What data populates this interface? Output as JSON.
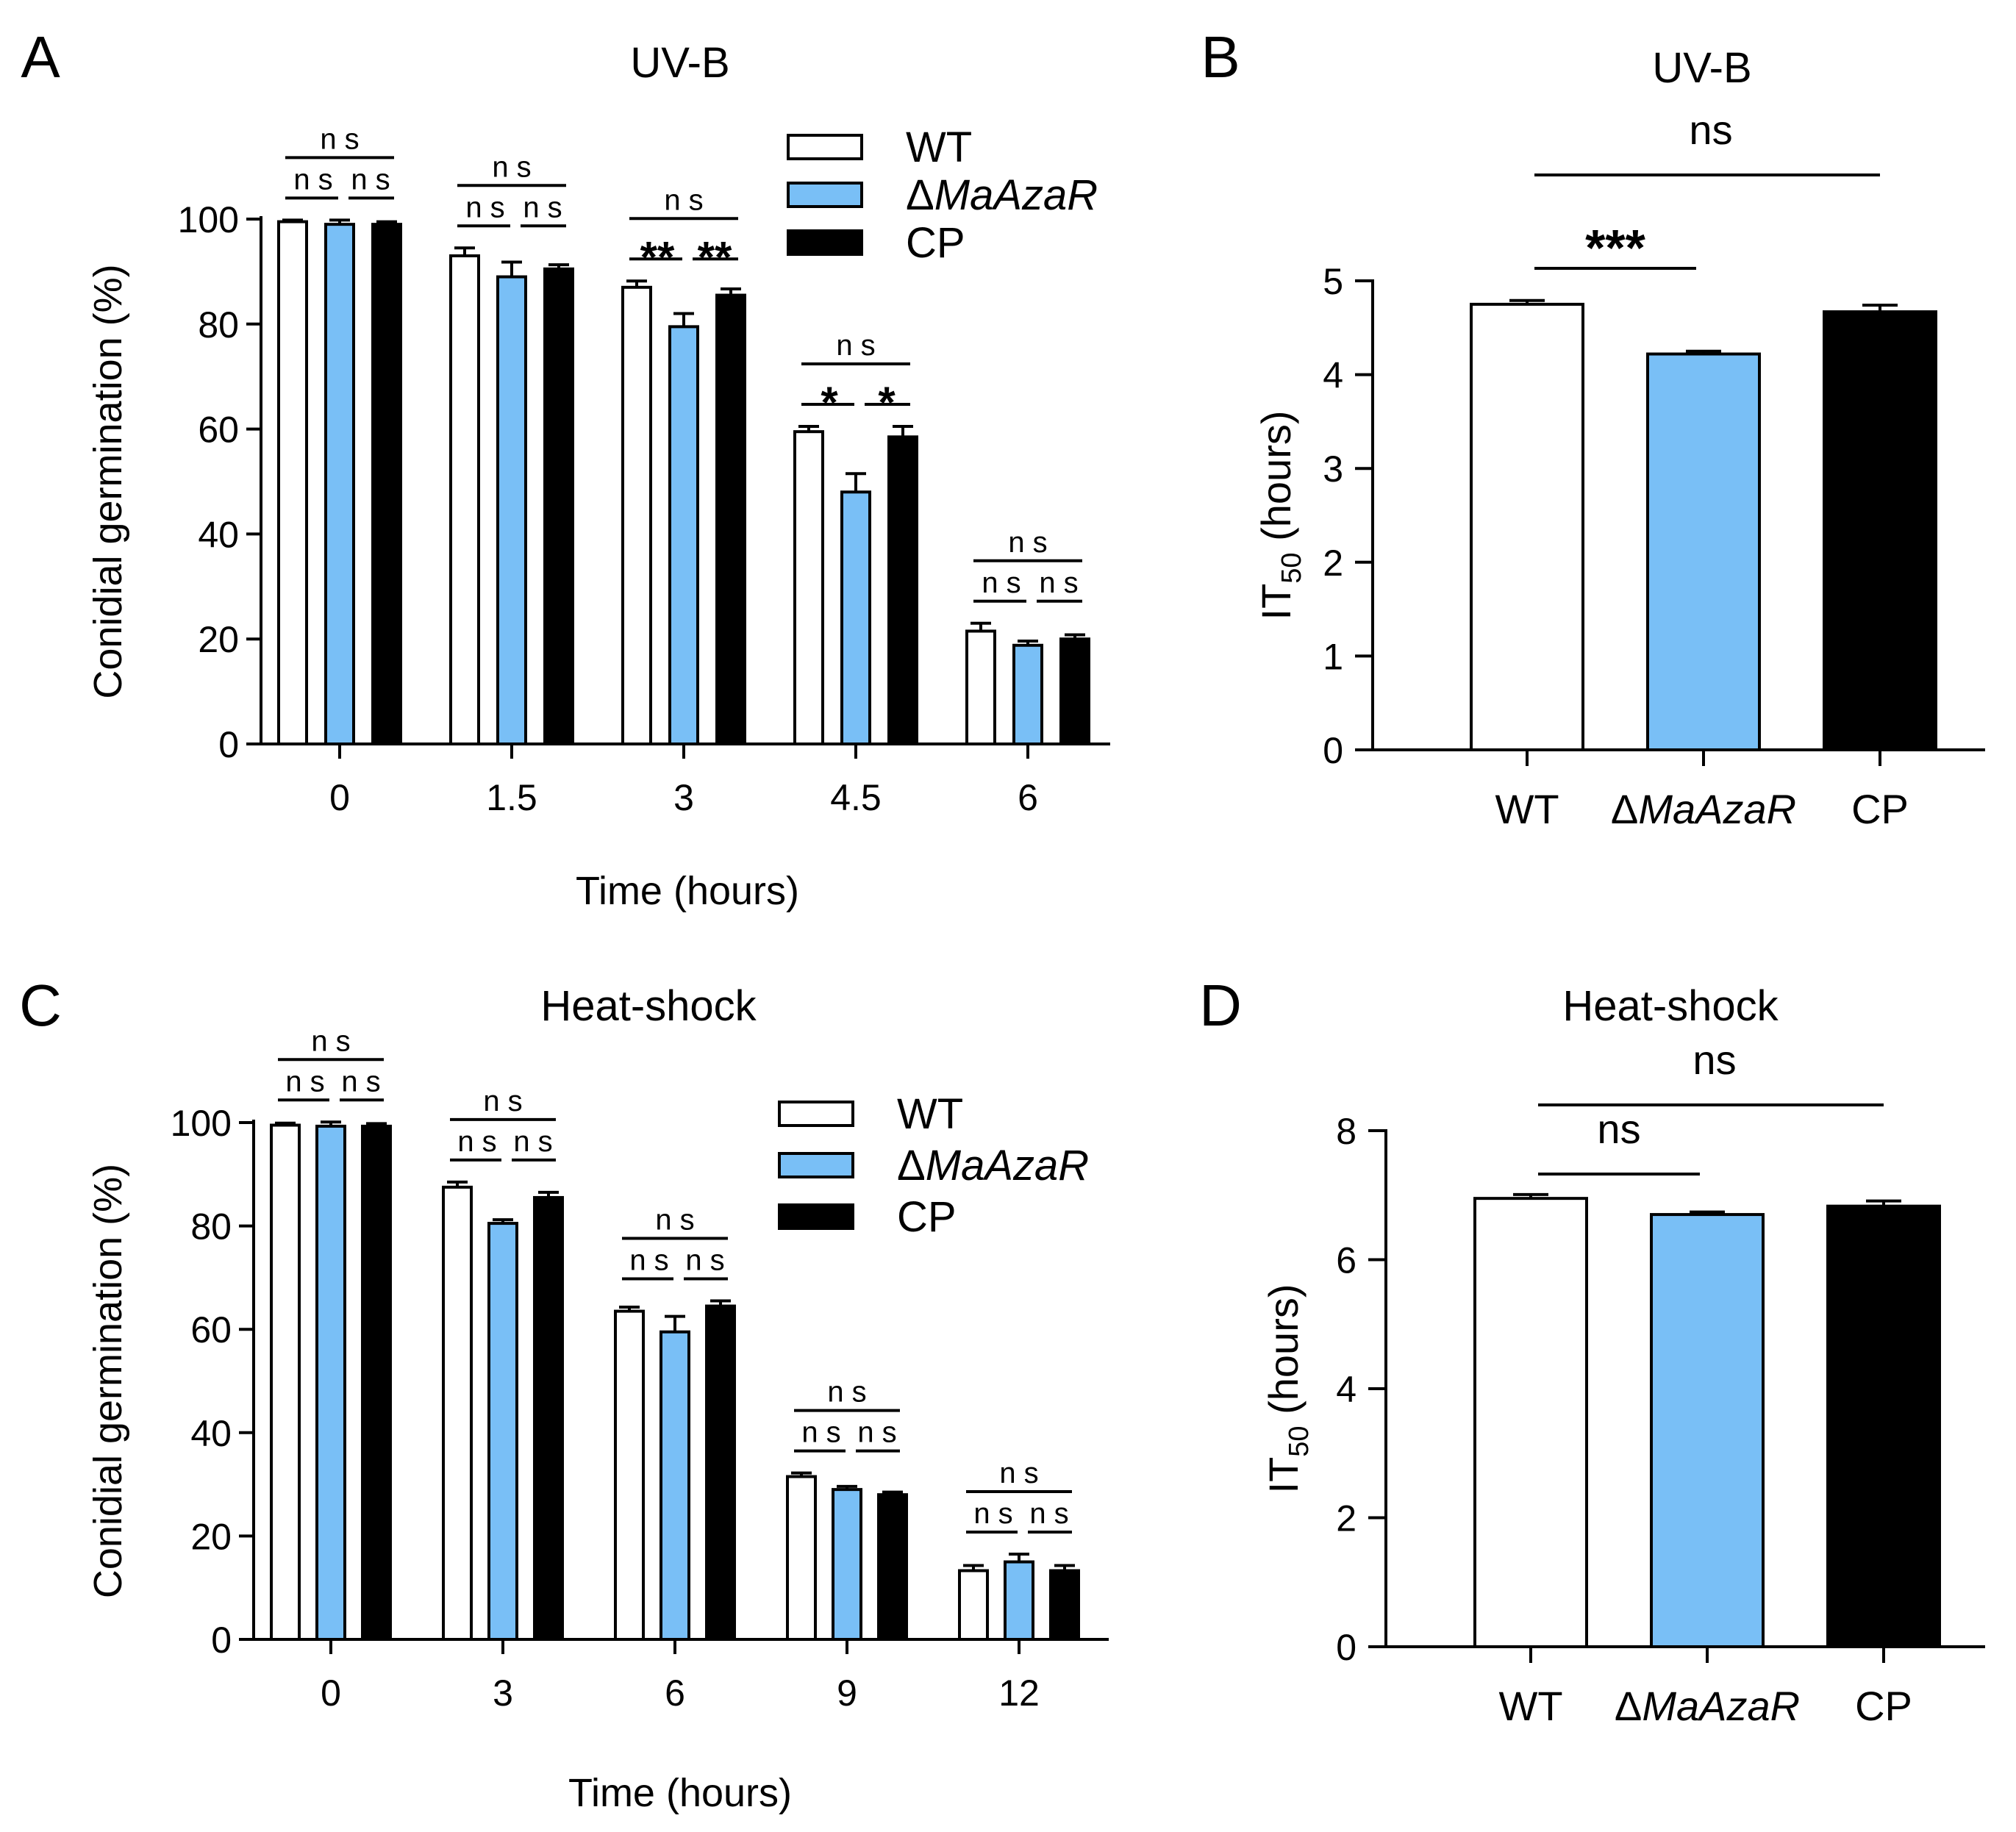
{
  "panel_letters": [
    "A",
    "B",
    "C",
    "D"
  ],
  "colors": {
    "WT": "#ffffff",
    "MaAzaR": "#79bff6",
    "CP": "#000000",
    "stroke": "#000000"
  },
  "chart_data": [
    {
      "panel": "A",
      "type": "bar",
      "title": "UV-B",
      "xlabel": "Time (hours)",
      "ylabel": "Conidial germination (%)",
      "ylim": [
        0,
        100
      ],
      "yticks": [
        "0",
        "20",
        "40",
        "60",
        "80",
        "100"
      ],
      "categories": [
        "0",
        "1.5",
        "3",
        "4.5",
        "6"
      ],
      "series": [
        {
          "name": "WT",
          "values": [
            99.5,
            93,
            87,
            59.5,
            21.5
          ],
          "errors": [
            0.3,
            1.5,
            1.2,
            1.0,
            1.5
          ]
        },
        {
          "name": "ΔMaAzaR",
          "values": [
            99,
            89,
            79.5,
            48,
            18.8
          ],
          "errors": [
            0.8,
            2.8,
            2.5,
            3.5,
            0.8
          ]
        },
        {
          "name": "CP",
          "values": [
            99,
            90.5,
            85.5,
            58.5,
            20
          ],
          "errors": [
            0.5,
            0.8,
            1.2,
            2.0,
            0.8
          ]
        }
      ],
      "legend": [
        "WT",
        "ΔMaAzaR",
        "CP"
      ],
      "legend_position": "top-right",
      "significance": [
        {
          "top": "ns",
          "left": "ns",
          "right": "ns"
        },
        {
          "top": "ns",
          "left": "ns",
          "right": "ns"
        },
        {
          "top": "ns",
          "left": "**",
          "right": "**"
        },
        {
          "top": "ns",
          "left": "*",
          "right": "*"
        },
        {
          "top": "ns",
          "left": "ns",
          "right": "ns"
        }
      ]
    },
    {
      "panel": "B",
      "type": "bar",
      "title": "UV-B",
      "ylabel": "IT50 (hours)",
      "ylim": [
        0,
        5
      ],
      "yticks": [
        "0",
        "1",
        "2",
        "3",
        "4",
        "5"
      ],
      "categories": [
        "WT",
        "ΔMaAzaR",
        "CP"
      ],
      "values": [
        4.75,
        4.22,
        4.67
      ],
      "errors": [
        0.04,
        0.03,
        0.07
      ],
      "significance": [
        {
          "from": "WT",
          "to": "ΔMaAzaR",
          "label": "***"
        },
        {
          "from": "WT",
          "to": "CP",
          "label": "ns"
        }
      ]
    },
    {
      "panel": "C",
      "type": "bar",
      "title": "Heat-shock",
      "xlabel": "Time (hours)",
      "ylabel": "Conidial germination (%)",
      "ylim": [
        0,
        100
      ],
      "yticks": [
        "0",
        "20",
        "40",
        "60",
        "80",
        "100"
      ],
      "categories": [
        "0",
        "3",
        "6",
        "9",
        "12"
      ],
      "series": [
        {
          "name": "WT",
          "values": [
            99.5,
            87.5,
            63.5,
            31.5,
            13.3
          ],
          "errors": [
            0.4,
            1.0,
            0.8,
            0.7,
            1.0
          ]
        },
        {
          "name": "ΔMaAzaR",
          "values": [
            99.3,
            80.5,
            59.5,
            29,
            15
          ],
          "errors": [
            0.8,
            0.7,
            3.0,
            0.6,
            1.5
          ]
        },
        {
          "name": "CP",
          "values": [
            99.3,
            85.5,
            64.5,
            28,
            13.3
          ],
          "errors": [
            0.5,
            1.0,
            1.0,
            0.5,
            1.0
          ]
        }
      ],
      "legend": [
        "WT",
        "ΔMaAzaR",
        "CP"
      ],
      "legend_position": "top-right",
      "significance": [
        {
          "top": "ns",
          "left": "ns",
          "right": "ns"
        },
        {
          "top": "ns",
          "left": "ns",
          "right": "ns"
        },
        {
          "top": "ns",
          "left": "ns",
          "right": "ns"
        },
        {
          "top": "ns",
          "left": "ns",
          "right": "ns"
        },
        {
          "top": "ns",
          "left": "ns",
          "right": "ns"
        }
      ]
    },
    {
      "panel": "D",
      "type": "bar",
      "title": "Heat-shock",
      "ylabel": "IT50 (hours)",
      "ylim": [
        0,
        8
      ],
      "yticks": [
        "0",
        "2",
        "4",
        "6",
        "8"
      ],
      "categories": [
        "WT",
        "ΔMaAzaR",
        "CP"
      ],
      "values": [
        6.95,
        6.7,
        6.83
      ],
      "errors": [
        0.06,
        0.04,
        0.08
      ],
      "significance": [
        {
          "from": "WT",
          "to": "ΔMaAzaR",
          "label": "ns"
        },
        {
          "from": "WT",
          "to": "CP",
          "label": "ns"
        }
      ]
    }
  ]
}
